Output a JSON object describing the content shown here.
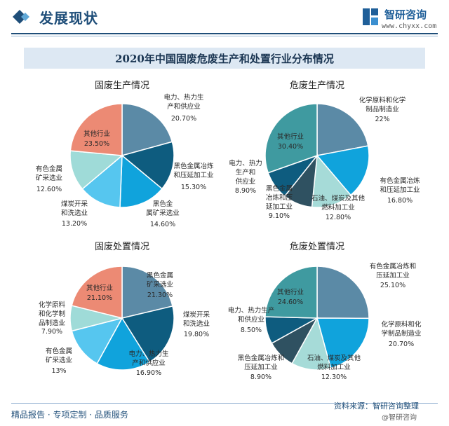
{
  "header": {
    "section_title": "发展现状",
    "brand_name": "智研咨询",
    "brand_url": "www.chyxx.com",
    "icon": "diamond-logo-icon"
  },
  "main_title": "2020年中国固废危废生产和处置行业分布情况",
  "footer": {
    "left": "精品报告 · 专项定制 · 品质服务",
    "source": "资料来源：智研咨询整理",
    "credit": "@智研咨询"
  },
  "colors": {
    "slate": "#5b8aa6",
    "navy": "#0e5c7f",
    "blue": "#10a3dc",
    "sky": "#56c6ef",
    "aqua": "#9fdbd8",
    "salmon": "#ec8a74",
    "teal": "#3f9aa0",
    "dark": "#2f5161",
    "pale": "#a6dbd8"
  },
  "chart_data": [
    {
      "type": "pie",
      "title": "固废生产情况",
      "slices": [
        {
          "label": "电力、热力生产和供应业",
          "value": 20.7,
          "value_text": "20.70%",
          "color": "#5b8aa6"
        },
        {
          "label": "黑色金属冶炼和压延加工业",
          "value": 15.3,
          "value_text": "15.30%",
          "color": "#0e5c7f"
        },
        {
          "label": "黑色金属矿采选业",
          "value": 14.6,
          "value_text": "14.60%",
          "color": "#10a3dc"
        },
        {
          "label": "煤炭开采和洗选业",
          "value": 13.2,
          "value_text": "13.20%",
          "color": "#56c6ef"
        },
        {
          "label": "有色金属矿采选业",
          "value": 12.6,
          "value_text": "12.60%",
          "color": "#9fdbd8"
        },
        {
          "label": "其他行业",
          "value": 23.5,
          "value_text": "23.50%",
          "color": "#ec8a74"
        }
      ]
    },
    {
      "type": "pie",
      "title": "危废生产情况",
      "slices": [
        {
          "label": "化学原料和化学制品制造业",
          "value": 22,
          "value_text": "22%",
          "color": "#5b8aa6"
        },
        {
          "label": "有色金属冶炼和压延加工业",
          "value": 16.8,
          "value_text": "16.80%",
          "color": "#10a3dc"
        },
        {
          "label": "石油、煤炭及其他燃料加工业",
          "value": 12.8,
          "value_text": "12.80%",
          "color": "#a6dbd8"
        },
        {
          "label": "黑色金属冶炼和压延加工业",
          "value": 9.1,
          "value_text": "9.10%",
          "color": "#2f5161"
        },
        {
          "label": "电力、热力生产和供应业",
          "value": 8.9,
          "value_text": "8.90%",
          "color": "#0e5c7f"
        },
        {
          "label": "其他行业",
          "value": 30.4,
          "value_text": "30.40%",
          "color": "#3f9aa0"
        }
      ]
    },
    {
      "type": "pie",
      "title": "固废处置情况",
      "slices": [
        {
          "label": "黑色金属矿采选业",
          "value": 21.3,
          "value_text": "21.30%",
          "color": "#5b8aa6"
        },
        {
          "label": "煤炭开采和洗选业",
          "value": 19.8,
          "value_text": "19.80%",
          "color": "#0e5c7f"
        },
        {
          "label": "电力、热力生产和供应业",
          "value": 16.9,
          "value_text": "16.90%",
          "color": "#10a3dc"
        },
        {
          "label": "有色金属矿采选业",
          "value": 13,
          "value_text": "13%",
          "color": "#56c6ef"
        },
        {
          "label": "化学原料和化学制品制造业",
          "value": 7.9,
          "value_text": "7.90%",
          "color": "#9fdbd8"
        },
        {
          "label": "其他行业",
          "value": 21.1,
          "value_text": "21.10%",
          "color": "#ec8a74"
        }
      ]
    },
    {
      "type": "pie",
      "title": "危废处置情况",
      "slices": [
        {
          "label": "有色金属冶炼和压延加工业",
          "value": 25.1,
          "value_text": "25.10%",
          "color": "#5b8aa6"
        },
        {
          "label": "化学原料和化学制品制造业",
          "value": 20.7,
          "value_text": "20.70%",
          "color": "#10a3dc"
        },
        {
          "label": "石油、煤炭及其他燃料加工业",
          "value": 12.3,
          "value_text": "12.30%",
          "color": "#a6dbd8"
        },
        {
          "label": "黑色金属冶炼和压延加工业",
          "value": 8.9,
          "value_text": "8.90%",
          "color": "#2f5161"
        },
        {
          "label": "电力、热力生产和供应业",
          "value": 8.5,
          "value_text": "8.50%",
          "color": "#0e5c7f"
        },
        {
          "label": "其他行业",
          "value": 24.6,
          "value_text": "24.60%",
          "color": "#3f9aa0"
        }
      ]
    }
  ]
}
